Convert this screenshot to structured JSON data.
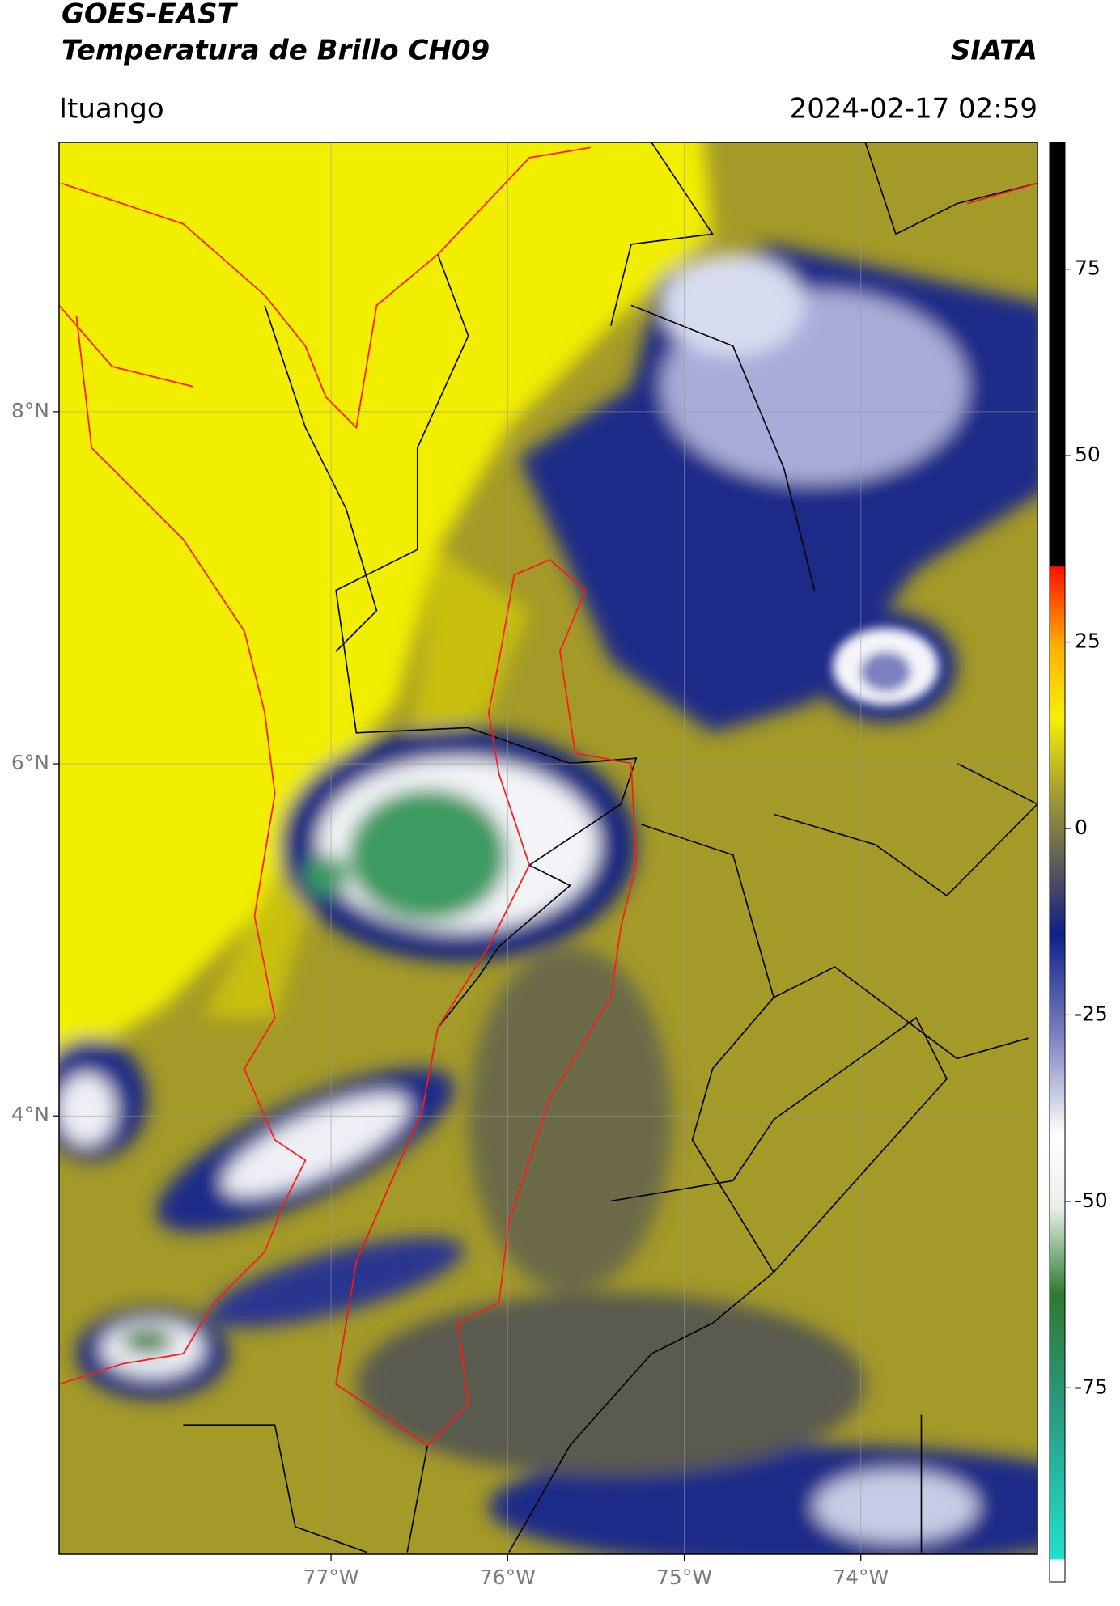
{
  "chart_data": {
    "type": "map",
    "title": "GOES-EAST",
    "subtitle": "Temperatura de Brillo CH09",
    "source": "SIATA",
    "region": "Ituango",
    "datetime": "2024-02-17 02:59",
    "xlim": [
      -78.54,
      -73.0
    ],
    "ylim": [
      1.51,
      9.53
    ],
    "xticks": [
      {
        "value": -77,
        "label": "77°W"
      },
      {
        "value": -76,
        "label": "76°W"
      },
      {
        "value": -75,
        "label": "75°W"
      },
      {
        "value": -74,
        "label": "74°W"
      }
    ],
    "yticks": [
      {
        "value": 8,
        "label": "8°N"
      },
      {
        "value": 6,
        "label": "6°N"
      },
      {
        "value": 4,
        "label": "4°N"
      }
    ],
    "grid": true,
    "colorbar": {
      "lim": [
        -101,
        92
      ],
      "ticks": [
        75,
        50,
        25,
        0,
        -25,
        -50,
        -75
      ]
    }
  }
}
